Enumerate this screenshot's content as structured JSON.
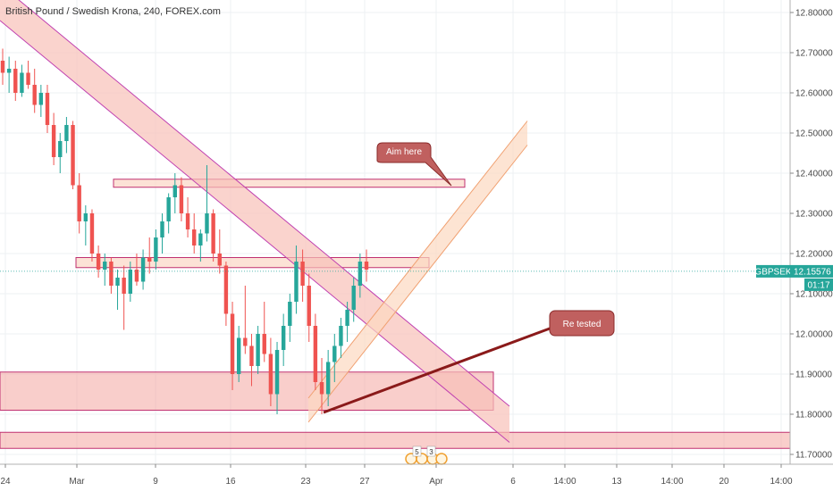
{
  "chart_data": {
    "type": "candlestick",
    "title": "British Pound / Swedish Krona, 240, FOREX.com",
    "symbol": "GBPSEK",
    "last_price": "12.15576",
    "countdown": "01:17",
    "y_range": [
      11.68,
      12.82
    ],
    "y_ticks": [
      "12.80000",
      "12.70000",
      "12.60000",
      "12.50000",
      "12.40000",
      "12.30000",
      "12.20000",
      "12.10000",
      "12.00000",
      "11.90000",
      "11.80000",
      "11.70000"
    ],
    "x_ticks": [
      "24",
      "Mar",
      "9",
      "16",
      "23",
      "27",
      "Apr",
      "6",
      "14:00",
      "13",
      "14:00",
      "20",
      "14:00"
    ],
    "grid": true,
    "candles": [
      {
        "o": 12.68,
        "h": 12.71,
        "l": 12.62,
        "c": 12.65
      },
      {
        "o": 12.65,
        "h": 12.69,
        "l": 12.6,
        "c": 12.66
      },
      {
        "o": 12.66,
        "h": 12.68,
        "l": 12.58,
        "c": 12.6
      },
      {
        "o": 12.6,
        "h": 12.67,
        "l": 12.59,
        "c": 12.65
      },
      {
        "o": 12.65,
        "h": 12.68,
        "l": 12.61,
        "c": 12.62
      },
      {
        "o": 12.62,
        "h": 12.66,
        "l": 12.55,
        "c": 12.57
      },
      {
        "o": 12.57,
        "h": 12.62,
        "l": 12.54,
        "c": 12.6
      },
      {
        "o": 12.6,
        "h": 12.62,
        "l": 12.5,
        "c": 12.52
      },
      {
        "o": 12.52,
        "h": 12.55,
        "l": 12.42,
        "c": 12.44
      },
      {
        "o": 12.44,
        "h": 12.5,
        "l": 12.4,
        "c": 12.48
      },
      {
        "o": 12.48,
        "h": 12.54,
        "l": 12.45,
        "c": 12.52
      },
      {
        "o": 12.52,
        "h": 12.53,
        "l": 12.36,
        "c": 12.37
      },
      {
        "o": 12.37,
        "h": 12.4,
        "l": 12.25,
        "c": 12.28
      },
      {
        "o": 12.28,
        "h": 12.32,
        "l": 12.22,
        "c": 12.3
      },
      {
        "o": 12.3,
        "h": 12.31,
        "l": 12.18,
        "c": 12.2
      },
      {
        "o": 12.2,
        "h": 12.22,
        "l": 12.14,
        "c": 12.16
      },
      {
        "o": 12.16,
        "h": 12.2,
        "l": 12.12,
        "c": 12.18
      },
      {
        "o": 12.18,
        "h": 12.19,
        "l": 12.1,
        "c": 12.12
      },
      {
        "o": 12.12,
        "h": 12.16,
        "l": 12.06,
        "c": 12.14
      },
      {
        "o": 12.14,
        "h": 12.17,
        "l": 12.01,
        "c": 12.1
      },
      {
        "o": 12.1,
        "h": 12.18,
        "l": 12.08,
        "c": 12.16
      },
      {
        "o": 12.16,
        "h": 12.2,
        "l": 12.12,
        "c": 12.13
      },
      {
        "o": 12.13,
        "h": 12.21,
        "l": 12.11,
        "c": 12.19
      },
      {
        "o": 12.19,
        "h": 12.24,
        "l": 12.15,
        "c": 12.18
      },
      {
        "o": 12.18,
        "h": 12.26,
        "l": 12.16,
        "c": 12.24
      },
      {
        "o": 12.24,
        "h": 12.3,
        "l": 12.2,
        "c": 12.28
      },
      {
        "o": 12.28,
        "h": 12.35,
        "l": 12.25,
        "c": 12.34
      },
      {
        "o": 12.34,
        "h": 12.4,
        "l": 12.3,
        "c": 12.37
      },
      {
        "o": 12.37,
        "h": 12.39,
        "l": 12.28,
        "c": 12.3
      },
      {
        "o": 12.3,
        "h": 12.34,
        "l": 12.24,
        "c": 12.26
      },
      {
        "o": 12.26,
        "h": 12.3,
        "l": 12.2,
        "c": 12.22
      },
      {
        "o": 12.22,
        "h": 12.26,
        "l": 12.18,
        "c": 12.25
      },
      {
        "o": 12.25,
        "h": 12.42,
        "l": 12.23,
        "c": 12.3
      },
      {
        "o": 12.3,
        "h": 12.31,
        "l": 12.18,
        "c": 12.2
      },
      {
        "o": 12.2,
        "h": 12.26,
        "l": 12.15,
        "c": 12.17
      },
      {
        "o": 12.17,
        "h": 12.18,
        "l": 12.02,
        "c": 12.05
      },
      {
        "o": 12.05,
        "h": 12.08,
        "l": 11.86,
        "c": 11.9
      },
      {
        "o": 11.9,
        "h": 12.02,
        "l": 11.88,
        "c": 11.99
      },
      {
        "o": 11.99,
        "h": 12.12,
        "l": 11.95,
        "c": 11.97
      },
      {
        "o": 11.97,
        "h": 12.0,
        "l": 11.87,
        "c": 11.92
      },
      {
        "o": 11.92,
        "h": 12.02,
        "l": 11.9,
        "c": 12.0
      },
      {
        "o": 12.0,
        "h": 12.08,
        "l": 11.93,
        "c": 11.95
      },
      {
        "o": 11.95,
        "h": 11.99,
        "l": 11.82,
        "c": 11.85
      },
      {
        "o": 11.85,
        "h": 11.98,
        "l": 11.8,
        "c": 11.96
      },
      {
        "o": 11.96,
        "h": 12.05,
        "l": 11.92,
        "c": 12.02
      },
      {
        "o": 12.02,
        "h": 12.1,
        "l": 11.98,
        "c": 12.08
      },
      {
        "o": 12.08,
        "h": 12.22,
        "l": 12.05,
        "c": 12.18
      },
      {
        "o": 12.18,
        "h": 12.21,
        "l": 12.08,
        "c": 12.12
      },
      {
        "o": 12.12,
        "h": 12.15,
        "l": 11.98,
        "c": 12.02
      },
      {
        "o": 12.02,
        "h": 12.05,
        "l": 11.86,
        "c": 11.88
      },
      {
        "o": 11.88,
        "h": 11.94,
        "l": 11.8,
        "c": 11.85
      },
      {
        "o": 11.85,
        "h": 11.96,
        "l": 11.82,
        "c": 11.93
      },
      {
        "o": 11.93,
        "h": 12.0,
        "l": 11.88,
        "c": 11.97
      },
      {
        "o": 11.97,
        "h": 12.04,
        "l": 11.94,
        "c": 12.02
      },
      {
        "o": 12.02,
        "h": 12.08,
        "l": 11.98,
        "c": 12.06
      },
      {
        "o": 12.06,
        "h": 12.14,
        "l": 12.03,
        "c": 12.12
      },
      {
        "o": 12.12,
        "h": 12.2,
        "l": 12.09,
        "c": 12.18
      },
      {
        "o": 12.18,
        "h": 12.21,
        "l": 12.13,
        "c": 12.16
      }
    ],
    "drawings": [
      {
        "kind": "channel",
        "name": "descending-channel",
        "p1": [
          0,
          12.78
        ],
        "p2": [
          570,
          11.73
        ],
        "width_price": 0.09
      },
      {
        "kind": "channel",
        "name": "ascending-channel",
        "p1": [
          345,
          11.78
        ],
        "p2": [
          590,
          12.47
        ],
        "width_price": 0.06
      },
      {
        "kind": "zone",
        "name": "resistance-zone",
        "x1": 127,
        "x2": 520,
        "y1": 12.365,
        "y2": 12.385
      },
      {
        "kind": "zone",
        "name": "mid-zone",
        "x1": 85,
        "x2": 480,
        "y1": 12.165,
        "y2": 12.19
      },
      {
        "kind": "zone",
        "name": "support-zone",
        "x1": 0,
        "x2": 552,
        "y1": 11.81,
        "y2": 11.905
      },
      {
        "kind": "zone",
        "name": "lower-zone",
        "x1": 0,
        "x2": 884,
        "y1": 11.715,
        "y2": 11.755
      }
    ],
    "annotations": [
      {
        "name": "aim-here-callout",
        "text": "Aim here"
      },
      {
        "name": "re-tested-callout",
        "text": "Re tested"
      }
    ],
    "events": [
      "5",
      "3"
    ],
    "colors": {
      "up": "#26a69a",
      "down": "#ef5350",
      "zone_fill": "#f4a6a1",
      "zone_edge": "#c03070",
      "channel_fill": "#f8c0b8",
      "channel_edge": "#c040b0",
      "asc_fill": "#fcd9c0",
      "asc_edge": "#f0a070",
      "callout": "#c0605f",
      "price_badge": "#26a69a"
    }
  }
}
